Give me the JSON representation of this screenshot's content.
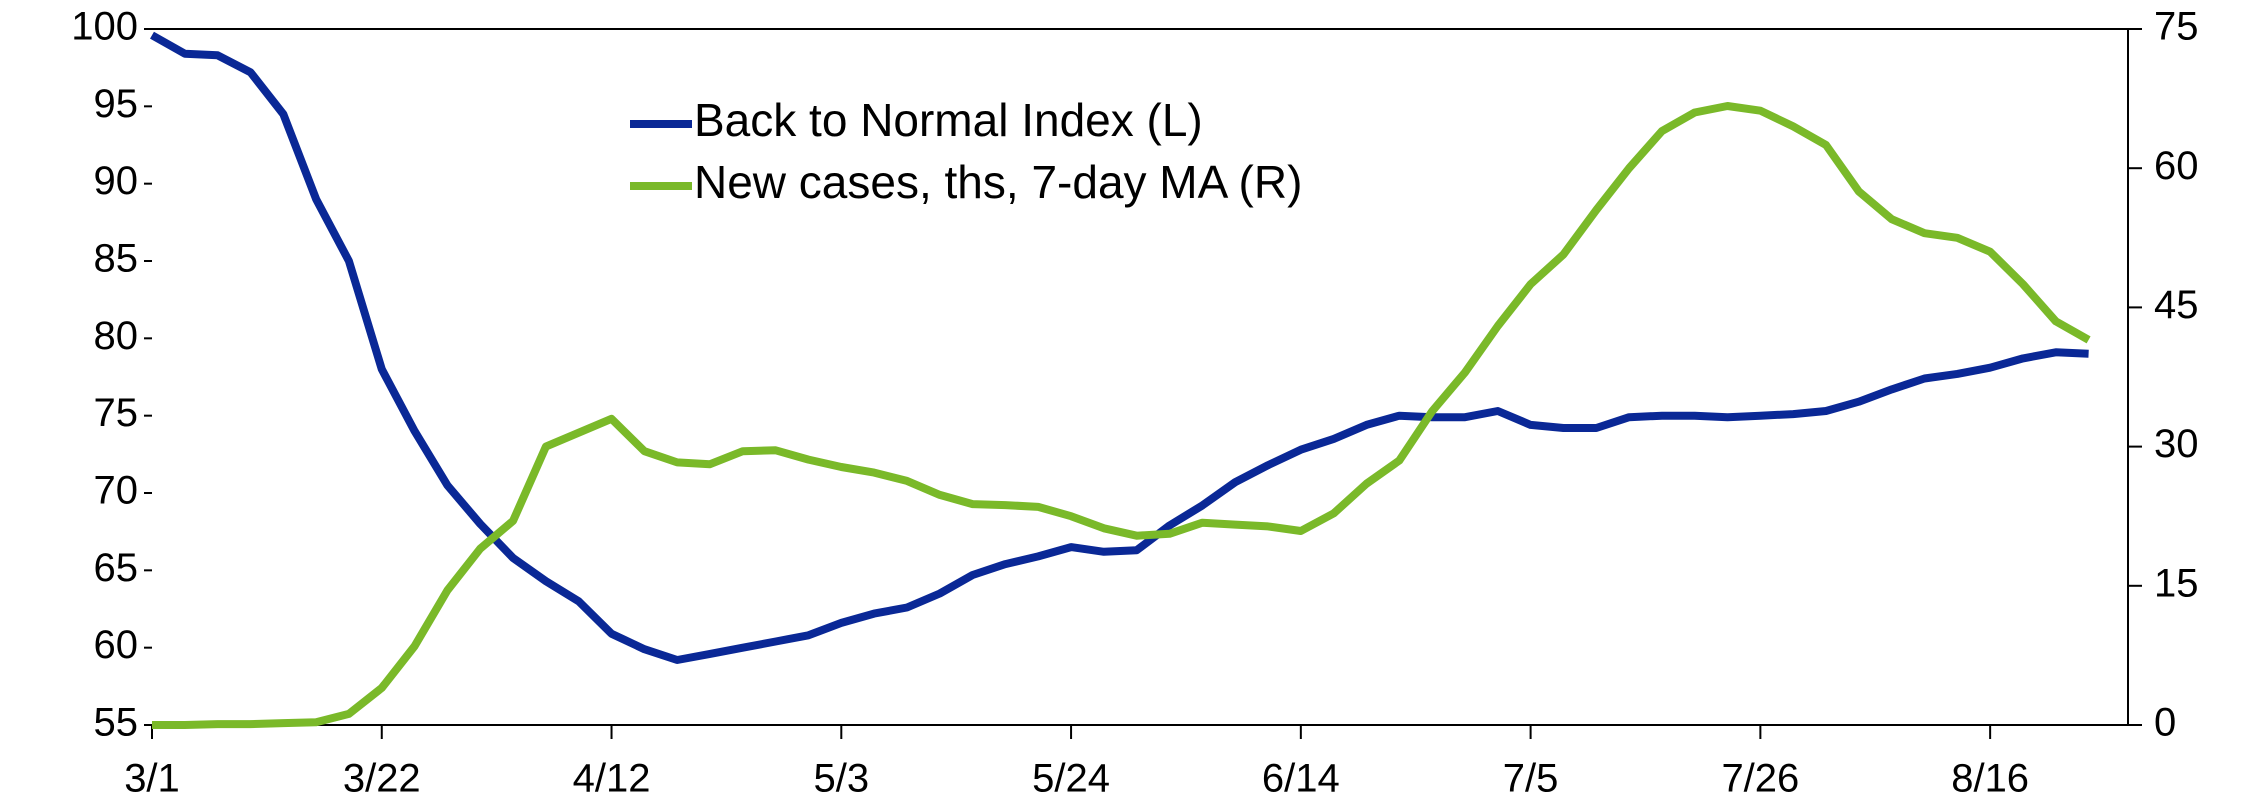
{
  "chart_data": {
    "type": "line",
    "categories": [
      "3/1",
      null,
      null,
      null,
      null,
      null,
      null,
      "3/22",
      null,
      null,
      null,
      null,
      null,
      null,
      "4/12",
      null,
      null,
      null,
      null,
      null,
      null,
      "5/3",
      null,
      null,
      null,
      null,
      null,
      null,
      "5/24",
      null,
      null,
      null,
      null,
      null,
      null,
      "6/14",
      null,
      null,
      null,
      null,
      null,
      null,
      "7/5",
      null,
      null,
      null,
      null,
      null,
      null,
      "7/26",
      null,
      null,
      null,
      null,
      null,
      null,
      "8/16",
      null,
      null,
      null
    ],
    "series": [
      {
        "name": "Back to Normal Index (L)",
        "color": "#0a2896",
        "axis": "y",
        "values": [
          99.6,
          98.4,
          98.3,
          97.2,
          94.5,
          89.0,
          85.0,
          78.0,
          74.0,
          70.5,
          68.0,
          65.8,
          64.3,
          63.0,
          60.9,
          59.9,
          59.2,
          59.6,
          60.0,
          60.4,
          60.8,
          61.6,
          62.2,
          62.6,
          63.5,
          64.7,
          65.4,
          65.9,
          66.5,
          66.2,
          66.3,
          67.9,
          69.2,
          70.7,
          71.8,
          72.8,
          73.5,
          74.4,
          75.0,
          74.9,
          74.9,
          75.3,
          74.4,
          74.2,
          74.2,
          74.9,
          75.0,
          75.0,
          74.9,
          75.0,
          75.1,
          75.3,
          75.9,
          76.7,
          77.4,
          77.7,
          78.1,
          78.7,
          79.1,
          79.0
        ]
      },
      {
        "name": "New cases, ths, 7-day MA (R)",
        "color": "#7ab929",
        "axis": "y2",
        "values": [
          0.0,
          0.0,
          0.1,
          0.1,
          0.2,
          0.3,
          1.2,
          4.0,
          8.5,
          14.5,
          19.0,
          22.0,
          30.0,
          31.5,
          33.0,
          29.5,
          28.3,
          28.1,
          29.5,
          29.6,
          28.6,
          27.8,
          27.2,
          26.3,
          24.8,
          23.8,
          23.7,
          23.5,
          22.5,
          21.2,
          20.4,
          20.6,
          21.8,
          21.6,
          21.4,
          20.9,
          22.8,
          26.0,
          28.5,
          33.8,
          38.0,
          43.0,
          47.5,
          50.7,
          55.5,
          60.0,
          64.0,
          66.0,
          66.7,
          66.2,
          64.5,
          62.5,
          57.5,
          54.5,
          53.0,
          52.5,
          51.0,
          47.5,
          43.5,
          41.5
        ]
      }
    ],
    "ylim": [
      55,
      100
    ],
    "yticks": [
      55,
      60,
      65,
      70,
      75,
      80,
      85,
      90,
      95,
      100
    ],
    "y2lim": [
      0,
      75
    ],
    "y2ticks": [
      0,
      15,
      30,
      45,
      60,
      75
    ],
    "legend": "top-center"
  }
}
